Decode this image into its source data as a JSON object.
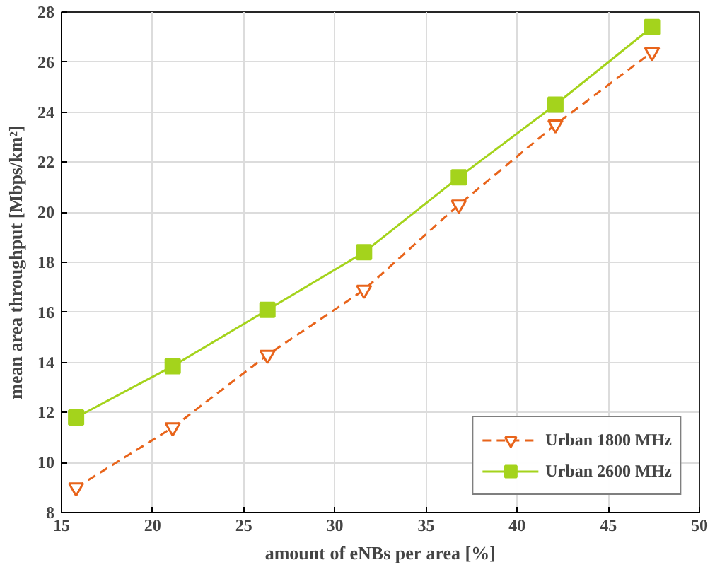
{
  "chart_data": {
    "type": "line",
    "xlabel": "amount of eNBs per area [%]",
    "ylabel": "mean area throughput [Mbps/km²]",
    "xlim": [
      15,
      50
    ],
    "ylim": [
      8,
      28
    ],
    "xticks": [
      15,
      20,
      25,
      30,
      35,
      40,
      45,
      50
    ],
    "yticks": [
      8,
      10,
      12,
      14,
      16,
      18,
      20,
      22,
      24,
      26,
      28
    ],
    "grid": true,
    "legend": "bottom right",
    "x": [
      15.8,
      21.1,
      26.3,
      31.6,
      36.8,
      42.1,
      47.4
    ],
    "series": [
      {
        "name": "Urban 1800 MHz",
        "color": "#e8641b",
        "values": [
          9.0,
          11.4,
          14.3,
          16.9,
          20.3,
          23.5,
          26.4
        ],
        "marker": "triangle",
        "line_style": "dashed"
      },
      {
        "name": "Urban 2600 MHz",
        "color": "#a4d31c",
        "values": [
          11.8,
          13.85,
          16.1,
          18.4,
          21.4,
          24.3,
          27.4
        ],
        "marker": "square",
        "line_style": "solid"
      }
    ]
  }
}
